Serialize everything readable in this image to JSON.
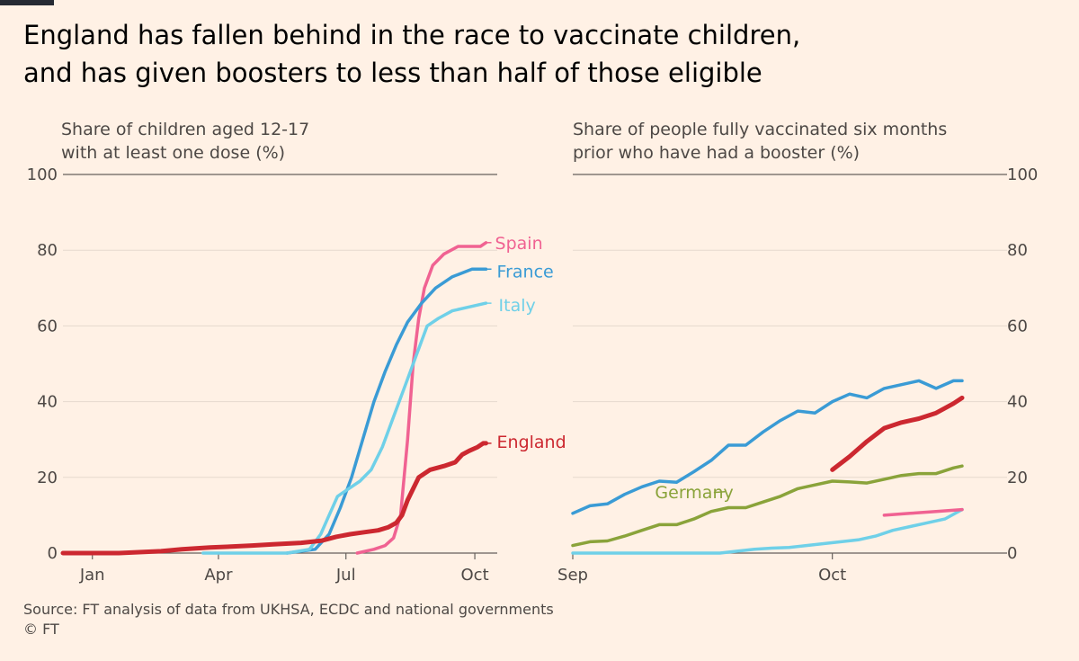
{
  "headline": {
    "line1": "England has fallen behind in the race to vaccinate children,",
    "line2": "and has given boosters to less than half of those eligible"
  },
  "source": "Source: FT analysis of data from UKHSA, ECDC and national governments",
  "copyright": "© FT",
  "chart_data": [
    {
      "type": "line",
      "title": "Share of children aged 12-17 with at least one dose (%)",
      "title_lines": [
        "Share of children aged 12-17",
        "with at least one dose (%)"
      ],
      "xlabel": "",
      "ylabel": "",
      "x_ticks": [
        {
          "label": "Jan",
          "x": 21
        },
        {
          "label": "Apr",
          "x": 111
        },
        {
          "label": "Jul",
          "x": 202
        },
        {
          "label": "Oct",
          "x": 294
        }
      ],
      "xlim": [
        0,
        310
      ],
      "ylim": [
        0,
        100
      ],
      "y_ticks": [
        0,
        20,
        40,
        60,
        80,
        100
      ],
      "y_axis_side": "left",
      "grid": "horizontal",
      "series": [
        {
          "name": "Spain",
          "color": "#f06292",
          "points": [
            [
              210,
              0
            ],
            [
              222,
              1
            ],
            [
              230,
              2
            ],
            [
              236,
              4
            ],
            [
              241,
              10
            ],
            [
              246,
              30
            ],
            [
              250,
              50
            ],
            [
              254,
              62
            ],
            [
              258,
              70
            ],
            [
              264,
              76
            ],
            [
              272,
              79
            ],
            [
              282,
              81
            ],
            [
              298,
              81
            ],
            [
              302,
              82
            ]
          ]
        },
        {
          "name": "France",
          "color": "#3a9bd5",
          "points": [
            [
              160,
              0
            ],
            [
              180,
              1
            ],
            [
              190,
              5
            ],
            [
              198,
              12
            ],
            [
              206,
              20
            ],
            [
              214,
              30
            ],
            [
              222,
              40
            ],
            [
              230,
              48
            ],
            [
              238,
              55
            ],
            [
              246,
              61
            ],
            [
              256,
              66
            ],
            [
              266,
              70
            ],
            [
              278,
              73
            ],
            [
              292,
              75
            ],
            [
              302,
              75
            ]
          ]
        },
        {
          "name": "Italy",
          "color": "#6fd0e8",
          "points": [
            [
              100,
              0
            ],
            [
              160,
              0
            ],
            [
              176,
              1
            ],
            [
              184,
              5
            ],
            [
              190,
              10
            ],
            [
              196,
              15
            ],
            [
              204,
              17
            ],
            [
              212,
              19
            ],
            [
              220,
              22
            ],
            [
              228,
              28
            ],
            [
              236,
              36
            ],
            [
              244,
              44
            ],
            [
              252,
              52
            ],
            [
              260,
              60
            ],
            [
              268,
              62
            ],
            [
              278,
              64
            ],
            [
              290,
              65
            ],
            [
              302,
              66
            ]
          ]
        },
        {
          "name": "England",
          "color": "#cc2830",
          "points": [
            [
              0,
              0
            ],
            [
              40,
              0
            ],
            [
              70,
              0.5
            ],
            [
              85,
              1
            ],
            [
              105,
              1.5
            ],
            [
              120,
              1.7
            ],
            [
              135,
              2
            ],
            [
              150,
              2.3
            ],
            [
              170,
              2.7
            ],
            [
              185,
              3.3
            ],
            [
              195,
              4.3
            ],
            [
              205,
              5
            ],
            [
              215,
              5.5
            ],
            [
              225,
              6
            ],
            [
              232,
              6.8
            ],
            [
              238,
              8
            ],
            [
              242,
              10
            ],
            [
              246,
              14
            ],
            [
              250,
              17
            ],
            [
              254,
              20
            ],
            [
              262,
              22
            ],
            [
              272,
              23
            ],
            [
              280,
              24
            ],
            [
              285,
              26
            ],
            [
              290,
              27
            ],
            [
              296,
              28
            ],
            [
              300,
              29
            ],
            [
              302,
              29
            ]
          ]
        }
      ]
    },
    {
      "type": "line",
      "title": "Share of people fully vaccinated six months prior who have had a booster (%)",
      "title_lines": [
        "Share of people fully vaccinated six months",
        "prior who have had a booster (%)"
      ],
      "xlabel": "",
      "ylabel": "",
      "x_ticks": [
        {
          "label": "Sep",
          "x": 1
        },
        {
          "label": "Oct",
          "x": 31
        }
      ],
      "xlim": [
        1,
        46
      ],
      "ylim": [
        0,
        100
      ],
      "y_ticks": [
        0,
        20,
        40,
        60,
        80,
        100
      ],
      "y_axis_side": "right",
      "grid": "horizontal",
      "series": [
        {
          "name": "",
          "color": "#3a9bd5",
          "points": [
            [
              1,
              10.5
            ],
            [
              3,
              12.5
            ],
            [
              5,
              13
            ],
            [
              7,
              15.5
            ],
            [
              9,
              17.5
            ],
            [
              11,
              19
            ],
            [
              13,
              18.7
            ],
            [
              15,
              21.5
            ],
            [
              17,
              24.5
            ],
            [
              19,
              28.5
            ],
            [
              21,
              28.5
            ],
            [
              23,
              32
            ],
            [
              25,
              35
            ],
            [
              27,
              37.5
            ],
            [
              29,
              37
            ],
            [
              31,
              40
            ],
            [
              33,
              42
            ],
            [
              35,
              41
            ],
            [
              37,
              43.5
            ],
            [
              39,
              44.5
            ],
            [
              41,
              45.5
            ],
            [
              43,
              43.5
            ],
            [
              45,
              45.5
            ],
            [
              46,
              45.5
            ]
          ]
        },
        {
          "name": "Germany",
          "color": "#8aa33a",
          "points": [
            [
              1,
              2
            ],
            [
              3,
              3
            ],
            [
              5,
              3.2
            ],
            [
              7,
              4.5
            ],
            [
              9,
              6
            ],
            [
              11,
              7.5
            ],
            [
              13,
              7.5
            ],
            [
              15,
              9
            ],
            [
              17,
              11
            ],
            [
              19,
              12
            ],
            [
              21,
              12
            ],
            [
              23,
              13.5
            ],
            [
              25,
              15
            ],
            [
              27,
              17
            ],
            [
              29,
              18
            ],
            [
              31,
              19
            ],
            [
              33,
              18.8
            ],
            [
              35,
              18.5
            ],
            [
              37,
              19.5
            ],
            [
              39,
              20.5
            ],
            [
              41,
              21
            ],
            [
              43,
              21
            ],
            [
              45,
              22.5
            ],
            [
              46,
              23
            ]
          ]
        },
        {
          "name": "",
          "color": "#cc2830",
          "points": [
            [
              31,
              22
            ],
            [
              33,
              25.5
            ],
            [
              35,
              29.5
            ],
            [
              37,
              33
            ],
            [
              39,
              34.5
            ],
            [
              41,
              35.5
            ],
            [
              43,
              37
            ],
            [
              45,
              39.5
            ],
            [
              46,
              41
            ]
          ]
        },
        {
          "name": "",
          "color": "#6fd0e8",
          "points": [
            [
              1,
              0
            ],
            [
              13,
              0
            ],
            [
              18,
              0
            ],
            [
              20,
              0.5
            ],
            [
              22,
              1
            ],
            [
              24,
              1.3
            ],
            [
              26,
              1.5
            ],
            [
              28,
              2
            ],
            [
              30,
              2.5
            ],
            [
              32,
              3
            ],
            [
              34,
              3.5
            ],
            [
              36,
              4.5
            ],
            [
              38,
              6
            ],
            [
              40,
              7
            ],
            [
              42,
              8
            ],
            [
              44,
              9
            ],
            [
              46,
              11.5
            ]
          ]
        },
        {
          "name": "",
          "color": "#f06292",
          "points": [
            [
              37,
              10
            ],
            [
              40,
              10.5
            ],
            [
              43,
              11
            ],
            [
              46,
              11.5
            ]
          ]
        }
      ]
    }
  ]
}
